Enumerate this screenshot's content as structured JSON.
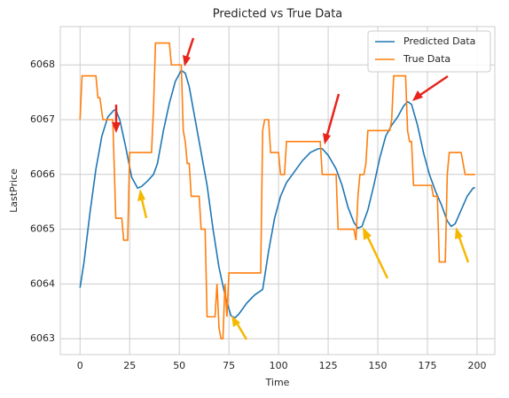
{
  "chart_data": {
    "type": "line",
    "title": "Predicted vs True Data",
    "xlabel": "Time",
    "ylabel": "LastPrice",
    "xlim": [
      -9.95,
      208.95
    ],
    "ylim": [
      6062.71,
      6068.7
    ],
    "xticks": [
      0,
      25,
      50,
      75,
      100,
      125,
      150,
      175,
      200
    ],
    "yticks": [
      6063,
      6064,
      6065,
      6066,
      6067,
      6068
    ],
    "grid": true,
    "legend": "upper right",
    "series": [
      {
        "name": "Predicted Data",
        "color": "#1f77b4",
        "x": [
          0,
          2,
          5,
          8,
          11,
          14,
          17,
          18,
          20,
          23,
          26,
          29,
          31,
          34,
          37,
          39,
          42,
          45,
          48,
          51,
          53,
          55,
          58,
          61,
          64,
          67,
          70,
          73,
          76,
          78,
          80,
          84,
          88,
          92,
          95,
          98,
          101,
          104,
          108,
          112,
          116,
          120,
          122,
          125,
          129,
          132,
          135,
          138,
          140,
          142,
          145,
          148,
          151,
          154,
          157,
          160,
          163,
          165,
          167,
          170,
          173,
          176,
          179,
          182,
          185,
          187,
          189,
          192,
          195,
          198,
          199
        ],
        "values": [
          6063.93,
          6064.4,
          6065.3,
          6066.1,
          6066.7,
          6067.05,
          6067.17,
          6067.18,
          6067.0,
          6066.5,
          6065.95,
          6065.75,
          6065.78,
          6065.88,
          6066.0,
          6066.2,
          6066.8,
          6067.3,
          6067.7,
          6067.9,
          6067.85,
          6067.6,
          6067.0,
          6066.4,
          6065.8,
          6065.0,
          6064.3,
          6063.8,
          6063.42,
          6063.38,
          6063.45,
          6063.65,
          6063.8,
          6063.9,
          6064.6,
          6065.2,
          6065.6,
          6065.85,
          6066.05,
          6066.25,
          6066.4,
          6066.47,
          6066.47,
          6066.35,
          6066.1,
          6065.8,
          6065.4,
          6065.12,
          6065.02,
          6065.05,
          6065.35,
          6065.8,
          6066.3,
          6066.7,
          6066.9,
          6067.05,
          6067.25,
          6067.33,
          6067.28,
          6066.9,
          6066.4,
          6066.0,
          6065.7,
          6065.45,
          6065.15,
          6065.05,
          6065.1,
          6065.35,
          6065.6,
          6065.75,
          6065.76
        ]
      },
      {
        "name": "True Data",
        "color": "#ff7f0e",
        "x": [
          0,
          1,
          8,
          9,
          10,
          11.5,
          16.5,
          18,
          21,
          22,
          24,
          25,
          36,
          37,
          38,
          45,
          46,
          51,
          52,
          53,
          54,
          55,
          56,
          60,
          61,
          63,
          64,
          68,
          69,
          70,
          71,
          72,
          73,
          74,
          75,
          91,
          92,
          93,
          95,
          96,
          100,
          101,
          103,
          104,
          121,
          122,
          129,
          130,
          138,
          139,
          140,
          141,
          143,
          144,
          145,
          156,
          157,
          158,
          164,
          165,
          166,
          167,
          168,
          177,
          178,
          180,
          181,
          184,
          185,
          186,
          192,
          193,
          194,
          199
        ],
        "values": [
          6067.0,
          6067.8,
          6067.8,
          6067.4,
          6067.4,
          6067.0,
          6067.0,
          6065.2,
          6065.2,
          6064.8,
          6064.8,
          6066.4,
          6066.4,
          6067.2,
          6068.4,
          6068.4,
          6068.0,
          6068.0,
          6066.8,
          6066.6,
          6066.2,
          6066.2,
          6065.6,
          6065.6,
          6065.0,
          6065.0,
          6063.4,
          6063.4,
          6064.0,
          6063.2,
          6063.0,
          6063.0,
          6064.0,
          6063.4,
          6064.2,
          6064.2,
          6066.8,
          6067.0,
          6067.0,
          6066.4,
          6066.4,
          6066.0,
          6066.0,
          6066.6,
          6066.6,
          6066.0,
          6066.0,
          6065.0,
          6065.0,
          6064.8,
          6065.6,
          6066.0,
          6066.0,
          6066.2,
          6066.8,
          6066.8,
          6067.0,
          6067.8,
          6067.8,
          6066.8,
          6066.6,
          6066.6,
          6065.8,
          6065.8,
          6065.6,
          6065.6,
          6064.4,
          6064.4,
          6066.0,
          6066.4,
          6066.4,
          6066.2,
          6066.0,
          6066.0
        ]
      }
    ]
  }
}
